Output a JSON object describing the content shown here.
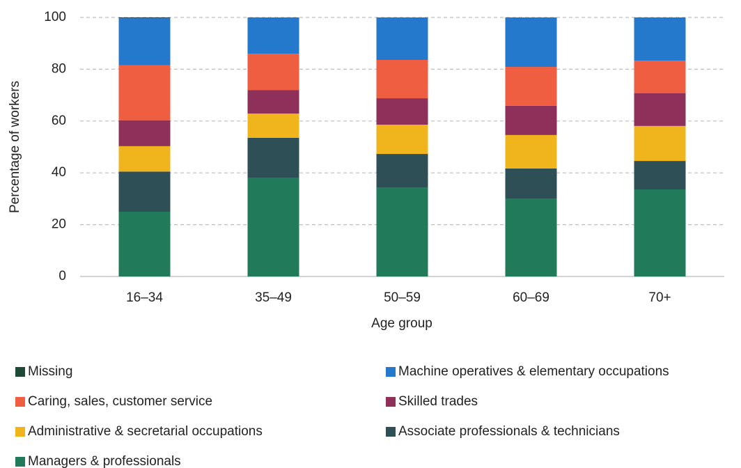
{
  "chart_data": {
    "type": "stacked_bar",
    "x_label": "Age group",
    "y_label": "Percentage of workers",
    "categories": [
      "16–34",
      "35–49",
      "50–59",
      "60–69",
      "70+"
    ],
    "series": [
      {
        "name": "Missing",
        "color": "#1d4a36",
        "values": [
          0.3,
          0,
          0,
          0,
          0
        ]
      },
      {
        "name": "Machine operatives & elementary occupations",
        "color": "#2479cc",
        "values": [
          18.2,
          14,
          16.4,
          19.1,
          16.7
        ]
      },
      {
        "name": "Caring, sales, customer service",
        "color": "#ef5e41",
        "values": [
          21.2,
          14,
          14.8,
          15,
          12.6
        ]
      },
      {
        "name": "Skilled trades",
        "color": "#8e3059",
        "values": [
          10,
          9.1,
          10.2,
          11.3,
          12.6
        ]
      },
      {
        "name": "Administrative & secretarial occupations",
        "color": "#f0b41c",
        "values": [
          9.8,
          9.4,
          11.3,
          12.9,
          13.5
        ]
      },
      {
        "name": "Associate professionals & technicians",
        "color": "#2f4f56",
        "values": [
          15.5,
          15.5,
          12.9,
          11.6,
          11
        ]
      },
      {
        "name": "Managers & professionals",
        "color": "#217a5a",
        "values": [
          25,
          38,
          34.4,
          30.1,
          33.6
        ]
      }
    ],
    "ylim": [
      0,
      100
    ],
    "yticks": [
      0,
      20,
      40,
      60,
      80,
      100
    ],
    "grid": true
  }
}
